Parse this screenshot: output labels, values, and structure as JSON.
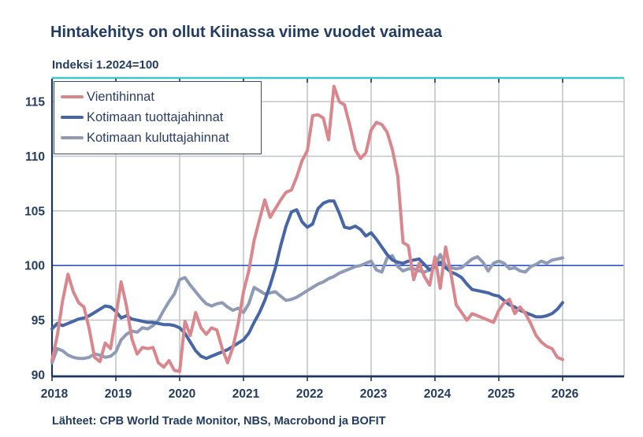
{
  "header": {
    "title": "Hintakehitys on ollut Kiinassa viime vuodet vaimeaa",
    "subtitle": "Indeksi 1.2024=100"
  },
  "footer": {
    "source": "Lähteet: CPB World Trade Monitor, NBS, Macrobond ja BOFIT"
  },
  "chart_data": {
    "type": "line",
    "title": "Hintakehitys on ollut Kiinassa viime vuodet vaimeaa",
    "subtitle": "Indeksi 1.2024=100",
    "xlabel": "",
    "ylabel": "Indeksi 1.2024=100",
    "x_ticks": [
      2018,
      2019,
      2020,
      2021,
      2022,
      2023,
      2024,
      2025,
      2026
    ],
    "y_ticks": [
      90,
      95,
      100,
      105,
      110,
      115
    ],
    "ylim": [
      89.8,
      117.1
    ],
    "xlim": [
      2018,
      2026.96
    ],
    "grid": true,
    "baseline_value": 100,
    "legend_position": "top-left",
    "frequency": "monthly",
    "x_start_year": 2018,
    "colors": {
      "top_border": "#3fc6cb",
      "right_border": "#c3c6ca",
      "axis": "#1e3560",
      "gridline": "#c3c6ca",
      "baseline_100": "#3253c3",
      "text": "#233c62"
    },
    "series": [
      {
        "name": "Vientihinnat",
        "color": "#d9878d",
        "values": [
          91.3,
          93.6,
          96.8,
          99.2,
          97.6,
          96.6,
          96.2,
          94.2,
          91.6,
          91.2,
          92.9,
          92.4,
          95.3,
          98.5,
          96.3,
          93.3,
          91.9,
          92.5,
          92.4,
          92.5,
          91.1,
          90.7,
          91.3,
          90.4,
          90.3,
          94.9,
          93.6,
          95.7,
          94.3,
          93.7,
          94.3,
          94.1,
          92.4,
          91.1,
          92.5,
          94.7,
          97.6,
          99.5,
          102.3,
          104.2,
          106.0,
          104.4,
          105.2,
          106.0,
          106.7,
          106.9,
          108.1,
          109.6,
          110.5,
          113.7,
          113.8,
          113.5,
          111.5,
          116.4,
          115.0,
          114.7,
          112.8,
          110.6,
          109.8,
          110.3,
          112.4,
          113.1,
          112.9,
          112.2,
          110.6,
          108.2,
          102.1,
          101.8,
          98.7,
          100.2,
          99.0,
          98.2,
          100.8,
          97.9,
          101.7,
          99.2,
          96.4,
          95.7,
          95.0,
          95.6,
          95.4,
          95.2,
          95.0,
          94.8,
          95.9,
          96.6,
          96.9,
          95.6,
          96.2,
          95.6,
          94.7,
          93.6,
          93.0,
          92.6,
          92.4,
          91.6,
          91.4
        ]
      },
      {
        "name": "Kotimaan tuottajahinnat",
        "color": "#4666a8",
        "values": [
          94.2,
          94.7,
          94.5,
          94.7,
          94.9,
          95.1,
          95.2,
          95.4,
          95.7,
          96.0,
          96.3,
          96.2,
          95.8,
          95.2,
          95.4,
          95.1,
          95.0,
          94.9,
          94.8,
          94.8,
          94.7,
          94.6,
          94.6,
          94.5,
          94.3,
          93.8,
          93.0,
          92.2,
          91.7,
          91.5,
          91.7,
          91.9,
          92.1,
          92.3,
          92.6,
          92.9,
          93.2,
          93.8,
          94.8,
          95.7,
          96.8,
          98.2,
          99.8,
          101.8,
          103.6,
          104.9,
          105.1,
          104.0,
          103.5,
          103.8,
          105.2,
          105.7,
          105.9,
          105.9,
          104.8,
          103.5,
          103.4,
          103.6,
          103.3,
          102.7,
          103.0,
          102.4,
          101.7,
          101.0,
          100.5,
          100.3,
          100.2,
          100.4,
          100.5,
          100.6,
          100.1,
          99.6,
          99.9,
          100.3,
          99.8,
          99.4,
          99.2,
          98.9,
          98.3,
          97.8,
          97.7,
          97.6,
          97.5,
          97.3,
          97.2,
          96.8,
          96.4,
          96.2,
          95.9,
          95.7,
          95.5,
          95.3,
          95.3,
          95.4,
          95.6,
          96.0,
          96.6
        ]
      },
      {
        "name": "Kotimaan kuluttajahinnat",
        "color": "#8f9ab6",
        "values": [
          91.1,
          92.4,
          92.2,
          91.8,
          91.6,
          91.5,
          91.5,
          91.6,
          91.9,
          91.8,
          91.6,
          91.7,
          92.1,
          93.2,
          93.7,
          94.0,
          93.9,
          94.3,
          94.2,
          94.5,
          95.0,
          95.9,
          96.7,
          97.4,
          98.7,
          98.9,
          98.2,
          97.6,
          97.0,
          96.5,
          96.3,
          96.5,
          96.6,
          96.2,
          95.9,
          96.1,
          95.7,
          96.5,
          98.0,
          97.7,
          97.4,
          97.5,
          97.6,
          97.2,
          96.8,
          96.9,
          97.1,
          97.4,
          97.7,
          98.0,
          98.3,
          98.5,
          98.8,
          99.0,
          99.3,
          99.5,
          99.7,
          99.9,
          100.0,
          100.2,
          100.4,
          99.6,
          99.4,
          100.7,
          100.9,
          99.9,
          99.5,
          99.7,
          99.7,
          99.5,
          99.4,
          99.6,
          100.0,
          101.0,
          100.0,
          99.8,
          99.7,
          99.8,
          100.2,
          100.6,
          100.8,
          100.3,
          99.5,
          100.2,
          100.4,
          100.2,
          99.7,
          99.8,
          99.5,
          99.4,
          99.9,
          100.1,
          100.4,
          100.2,
          100.5,
          100.6,
          100.7
        ]
      }
    ]
  }
}
